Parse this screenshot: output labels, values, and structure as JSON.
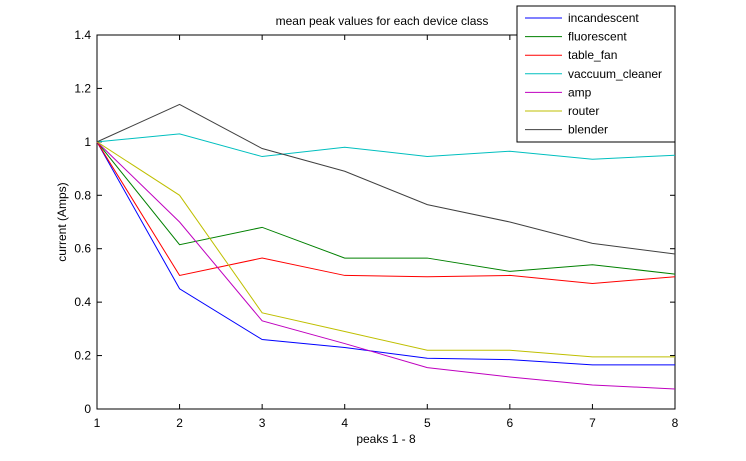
{
  "chart_data": {
    "type": "line",
    "title": "mean peak values for each device class",
    "xlabel": "peaks 1 - 8",
    "ylabel": "current (Amps)",
    "x": [
      1,
      2,
      3,
      4,
      5,
      6,
      7,
      8
    ],
    "xlim": [
      1,
      8
    ],
    "ylim": [
      0,
      1.4
    ],
    "xticks": [
      "1",
      "2",
      "3",
      "4",
      "5",
      "6",
      "7",
      "8"
    ],
    "yticks": [
      "0",
      "0.2",
      "0.4",
      "0.6",
      "0.8",
      "1",
      "1.2",
      "1.4"
    ],
    "grid": false,
    "legend_position": "top-right",
    "series": [
      {
        "name": "incandescent",
        "color": "#0000ff",
        "values": [
          1,
          0.45,
          0.26,
          0.23,
          0.19,
          0.185,
          0.165,
          0.165
        ]
      },
      {
        "name": "fluorescent",
        "color": "#008000",
        "values": [
          1,
          0.615,
          0.68,
          0.565,
          0.565,
          0.515,
          0.54,
          0.505
        ]
      },
      {
        "name": "table_fan",
        "color": "#ff0000",
        "values": [
          1,
          0.5,
          0.565,
          0.5,
          0.495,
          0.5,
          0.47,
          0.495
        ]
      },
      {
        "name": "vaccuum_cleaner",
        "color": "#00bfbf",
        "values": [
          1,
          1.03,
          0.945,
          0.98,
          0.945,
          0.965,
          0.935,
          0.95
        ]
      },
      {
        "name": "amp",
        "color": "#bf00bf",
        "values": [
          1,
          0.7,
          0.33,
          0.245,
          0.155,
          0.12,
          0.09,
          0.075
        ]
      },
      {
        "name": "router",
        "color": "#bfbf00",
        "values": [
          1,
          0.8,
          0.36,
          0.29,
          0.22,
          0.22,
          0.195,
          0.195
        ]
      },
      {
        "name": "blender",
        "color": "#404040",
        "values": [
          1,
          1.14,
          0.975,
          0.89,
          0.765,
          0.7,
          0.62,
          0.58
        ]
      }
    ]
  }
}
